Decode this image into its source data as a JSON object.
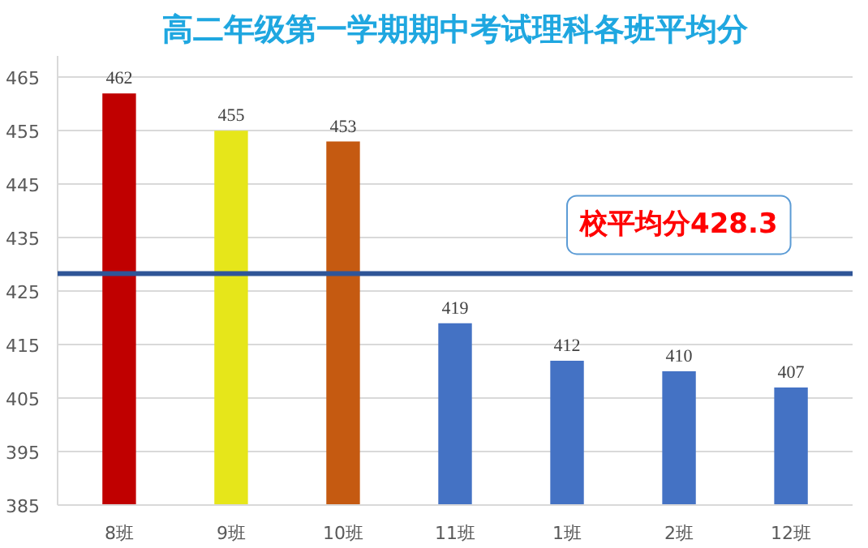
{
  "chart_data": {
    "type": "bar",
    "title": "高二年级第一学期期中考试理科各班平均分",
    "categories": [
      "8班",
      "9班",
      "10班",
      "11班",
      "1班",
      "2班",
      "12班"
    ],
    "values": [
      462,
      455,
      453,
      419,
      412,
      410,
      407
    ],
    "colors": [
      "#c00000",
      "#e6e61a",
      "#c55a11",
      "#4472c4",
      "#4472c4",
      "#4472c4",
      "#4472c4"
    ],
    "ylim": [
      385,
      469
    ],
    "yticks": [
      385,
      395,
      405,
      415,
      425,
      435,
      445,
      455,
      465
    ],
    "grid": "y",
    "data_labels": true,
    "ref_lines": [
      {
        "axis": "y",
        "value": 428.3,
        "label": "校平均分428.3",
        "color": "#2f5597"
      }
    ]
  }
}
